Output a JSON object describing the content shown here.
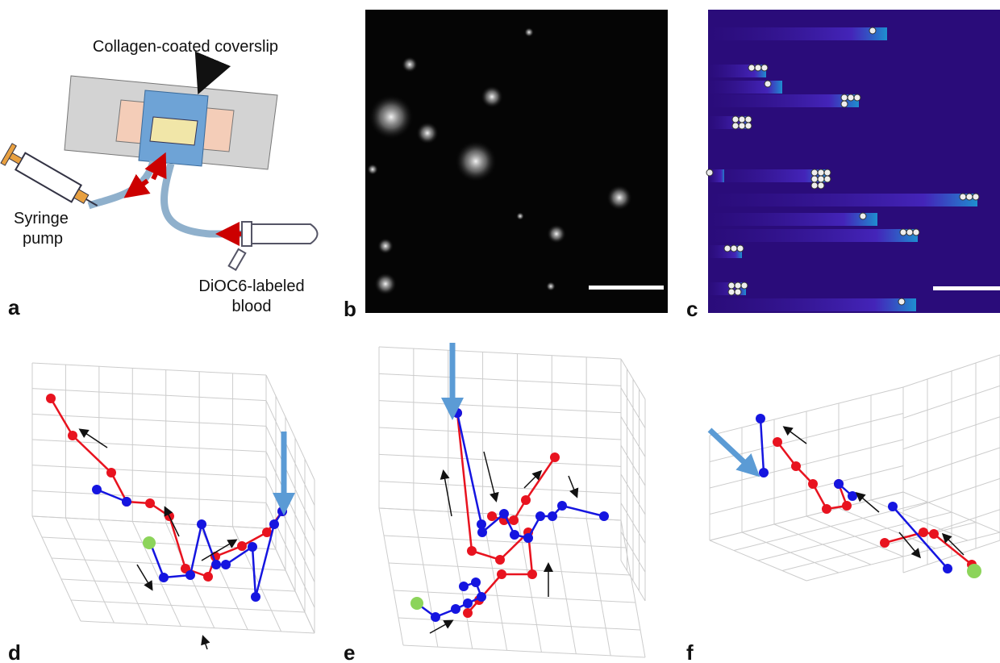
{
  "panel_a": {
    "label": "a",
    "coverslip": "Collagen-coated coverslip",
    "pump": [
      "Syringe",
      "pump"
    ],
    "blood": [
      "DiOC6-labeled",
      "blood"
    ]
  },
  "panel_b": {
    "label": "b"
  },
  "panel_c": {
    "label": "c"
  },
  "panel_d": {
    "label": "d"
  },
  "panel_e": {
    "label": "e"
  },
  "panel_f": {
    "label": "f"
  }
}
